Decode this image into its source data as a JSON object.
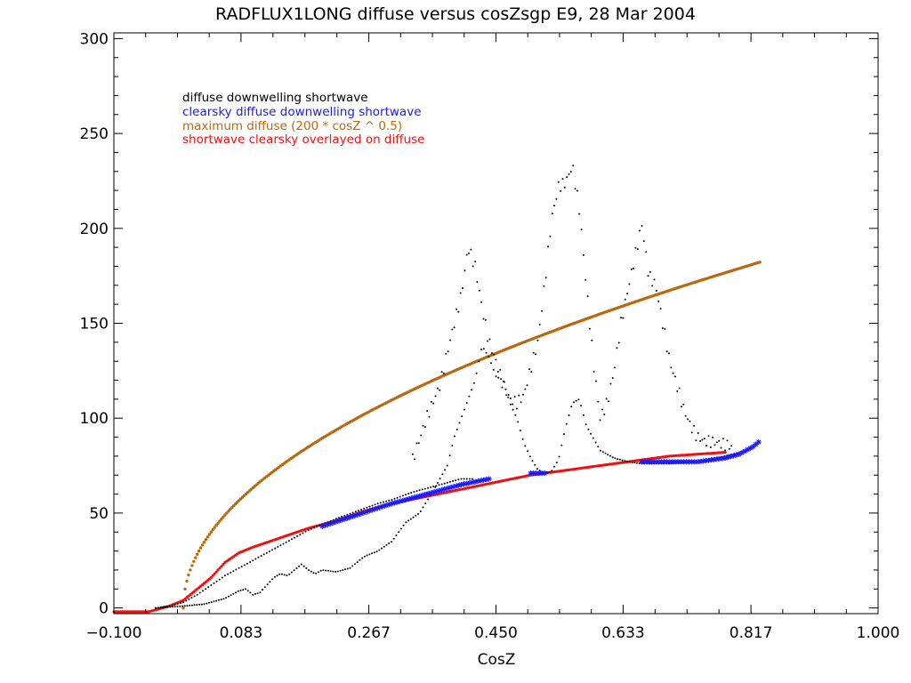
{
  "chart_data": {
    "type": "scatter",
    "title": "RADFLUX1LONG diffuse versus cosZsgp E9, 28 Mar 2004",
    "xlabel": "CosZ",
    "ylabel": "",
    "xlim": [
      -0.1,
      1.0
    ],
    "ylim": [
      -3,
      303
    ],
    "xticks": [
      -0.1,
      0.083,
      0.267,
      0.45,
      0.633,
      0.817,
      1.0
    ],
    "xtick_labels": [
      "−0.100",
      "0.083",
      "0.267",
      "0.450",
      "0.633",
      "0.817",
      "1.000"
    ],
    "yticks": [
      0,
      50,
      100,
      150,
      200,
      250,
      300
    ],
    "ytick_labels": [
      "0",
      "50",
      "100",
      "150",
      "200",
      "250",
      "300"
    ],
    "legend_position": "top-left",
    "colors": {
      "diffuse": "#000000",
      "clearsky": "#1a1aff",
      "maximum": "#b8690e",
      "overlay": "#ee1111",
      "axes": "#000000"
    },
    "series": [
      {
        "name": "diffuse downwelling shortwave",
        "color": "#000000",
        "points_upper": [
          [
            -0.04,
            0
          ],
          [
            -0.02,
            1
          ],
          [
            0,
            3
          ],
          [
            0.02,
            7
          ],
          [
            0.04,
            12
          ],
          [
            0.06,
            17
          ],
          [
            0.08,
            21
          ],
          [
            0.1,
            25
          ],
          [
            0.12,
            29
          ],
          [
            0.14,
            33
          ],
          [
            0.16,
            37
          ],
          [
            0.18,
            41
          ],
          [
            0.2,
            44
          ],
          [
            0.22,
            47
          ],
          [
            0.25,
            51
          ],
          [
            0.28,
            55
          ],
          [
            0.3,
            57
          ],
          [
            0.33,
            61
          ],
          [
            0.36,
            64
          ],
          [
            0.38,
            66
          ],
          [
            0.4,
            68
          ],
          [
            0.42,
            68
          ]
        ],
        "points_lower": [
          [
            -0.04,
            0
          ],
          [
            0,
            1
          ],
          [
            0.03,
            2
          ],
          [
            0.06,
            5
          ],
          [
            0.08,
            9
          ],
          [
            0.09,
            10
          ],
          [
            0.1,
            7
          ],
          [
            0.11,
            8
          ],
          [
            0.12,
            12
          ],
          [
            0.13,
            16
          ],
          [
            0.14,
            18
          ],
          [
            0.15,
            17
          ],
          [
            0.16,
            20
          ],
          [
            0.17,
            23
          ],
          [
            0.18,
            20
          ],
          [
            0.19,
            18
          ],
          [
            0.2,
            20
          ],
          [
            0.22,
            19
          ],
          [
            0.24,
            21
          ],
          [
            0.26,
            27
          ],
          [
            0.28,
            30
          ],
          [
            0.3,
            35
          ],
          [
            0.32,
            45
          ],
          [
            0.34,
            50
          ],
          [
            0.36,
            62
          ],
          [
            0.38,
            75
          ],
          [
            0.39,
            90
          ],
          [
            0.4,
            100
          ],
          [
            0.41,
            110
          ],
          [
            0.42,
            120
          ],
          [
            0.43,
            138
          ],
          [
            0.44,
            132
          ],
          [
            0.45,
            122
          ],
          [
            0.46,
            120
          ],
          [
            0.47,
            108
          ],
          [
            0.48,
            100
          ],
          [
            0.49,
            87
          ],
          [
            0.5,
            79
          ],
          [
            0.51,
            73
          ],
          [
            0.52,
            71
          ],
          [
            0.53,
            72
          ],
          [
            0.54,
            78
          ],
          [
            0.55,
            95
          ],
          [
            0.56,
            108
          ],
          [
            0.57,
            110
          ],
          [
            0.58,
            96
          ],
          [
            0.6,
            83
          ],
          [
            0.62,
            79
          ],
          [
            0.64,
            77
          ],
          [
            0.66,
            76
          ],
          [
            0.7,
            76
          ],
          [
            0.74,
            77
          ],
          [
            0.78,
            80
          ],
          [
            0.82,
            84
          ]
        ],
        "peaks": [
          [
            0.33,
            78
          ],
          [
            0.35,
            100
          ],
          [
            0.37,
            118
          ],
          [
            0.38,
            135
          ],
          [
            0.39,
            150
          ],
          [
            0.4,
            165
          ],
          [
            0.41,
            190
          ],
          [
            0.42,
            180
          ],
          [
            0.43,
            158
          ],
          [
            0.44,
            140
          ],
          [
            0.45,
            130
          ],
          [
            0.46,
            118
          ],
          [
            0.47,
            110
          ],
          [
            0.48,
            108
          ],
          [
            0.49,
            112
          ],
          [
            0.5,
            126
          ],
          [
            0.51,
            140
          ],
          [
            0.52,
            170
          ],
          [
            0.53,
            205
          ],
          [
            0.54,
            222
          ],
          [
            0.55,
            224
          ],
          [
            0.56,
            233
          ],
          [
            0.57,
            210
          ],
          [
            0.58,
            170
          ],
          [
            0.59,
            130
          ],
          [
            0.6,
            100
          ],
          [
            0.61,
            108
          ],
          [
            0.62,
            125
          ],
          [
            0.63,
            150
          ],
          [
            0.64,
            168
          ],
          [
            0.65,
            185
          ],
          [
            0.66,
            202
          ],
          [
            0.67,
            175
          ],
          [
            0.68,
            170
          ],
          [
            0.69,
            150
          ],
          [
            0.7,
            130
          ],
          [
            0.71,
            118
          ],
          [
            0.72,
            105
          ],
          [
            0.73,
            96
          ],
          [
            0.74,
            90
          ],
          [
            0.75,
            88
          ],
          [
            0.77,
            87
          ],
          [
            0.79,
            85
          ]
        ]
      },
      {
        "name": "clearsky diffuse downwelling shortwave",
        "color": "#1a1aff",
        "segments": [
          [
            [
              0.2,
              43
            ],
            [
              0.25,
              49
            ],
            [
              0.3,
              55
            ],
            [
              0.35,
              60
            ],
            [
              0.4,
              65
            ],
            [
              0.44,
              68
            ]
          ],
          [
            [
              0.5,
              71
            ],
            [
              0.52,
              71
            ]
          ],
          [
            [
              0.66,
              77
            ],
            [
              0.7,
              77
            ],
            [
              0.74,
              77
            ],
            [
              0.78,
              79
            ],
            [
              0.8,
              81
            ],
            [
              0.82,
              85
            ],
            [
              0.83,
              88
            ]
          ]
        ]
      },
      {
        "name": "maximum diffuse (200 * cosZ ^ 0.5)",
        "color": "#b8690e",
        "formula": "200*sqrt(cosZ)",
        "x_range": [
          0.0,
          0.83
        ]
      },
      {
        "name": "shortwave clearsky overlayed on diffuse",
        "color": "#ee1111",
        "points": [
          [
            -0.1,
            -2
          ],
          [
            -0.05,
            -2
          ],
          [
            -0.02,
            1
          ],
          [
            0,
            4
          ],
          [
            0.02,
            10
          ],
          [
            0.04,
            16
          ],
          [
            0.06,
            24
          ],
          [
            0.08,
            29
          ],
          [
            0.1,
            32
          ],
          [
            0.14,
            37
          ],
          [
            0.18,
            42
          ],
          [
            0.22,
            46
          ],
          [
            0.26,
            51
          ],
          [
            0.3,
            55
          ],
          [
            0.34,
            58
          ],
          [
            0.38,
            61
          ],
          [
            0.42,
            64
          ],
          [
            0.46,
            67
          ],
          [
            0.5,
            70
          ],
          [
            0.54,
            72
          ],
          [
            0.58,
            74
          ],
          [
            0.62,
            76
          ],
          [
            0.66,
            78
          ],
          [
            0.7,
            80
          ],
          [
            0.74,
            81
          ],
          [
            0.78,
            82
          ]
        ]
      }
    ]
  }
}
